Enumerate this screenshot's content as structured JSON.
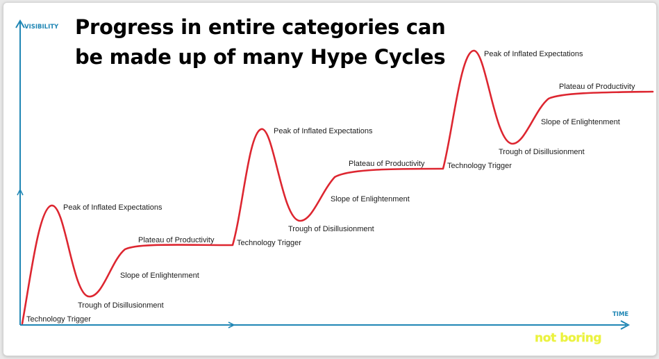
{
  "title": {
    "line1": "Progress in entire categories can",
    "line2": "be made up of many Hype Cycles"
  },
  "axes": {
    "y_label": "VISIBILITY",
    "x_label": "TIME"
  },
  "cycles": [
    {
      "technology_trigger": "Technology Trigger",
      "peak": "Peak of Inflated Expectations",
      "trough": "Trough of Disillusionment",
      "slope": "Slope of Enlightenment",
      "plateau": "Plateau of Productivity"
    },
    {
      "technology_trigger": "Technology Trigger",
      "peak": "Peak of Inflated Expectations",
      "trough": "Trough of Disillusionment",
      "slope": "Slope of Enlightenment",
      "plateau": "Plateau of Productivity"
    },
    {
      "technology_trigger": "Technology Trigger",
      "peak": "Peak of Inflated Expectations",
      "trough": "Trough of Disillusionment",
      "slope": "Slope of Enlightenment",
      "plateau": "Plateau of Productivity"
    }
  ],
  "watermark": "not boring",
  "colors": {
    "curve": "#dd2630",
    "axis": "#1f86b4",
    "title": "#000000",
    "watermark": "#eaf23b"
  },
  "icons": [
    "arrow-up-icon",
    "arrow-right-icon"
  ]
}
